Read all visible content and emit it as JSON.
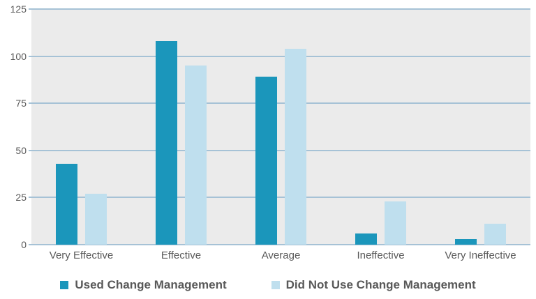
{
  "chart_data": {
    "type": "bar",
    "title": "",
    "xlabel": "",
    "ylabel": "",
    "categories": [
      "Very Effective",
      "Effective",
      "Average",
      "Ineffective",
      "Very Ineffective"
    ],
    "series": [
      {
        "name": "Used Change Management",
        "color": "#1b96bb",
        "values": [
          43,
          108,
          89,
          6,
          3
        ]
      },
      {
        "name": "Did Not Use Change Management",
        "color": "#bfdfee",
        "values": [
          27,
          95,
          104,
          23,
          11
        ]
      }
    ],
    "ylim": [
      0,
      125
    ],
    "yticks": [
      0,
      25,
      50,
      75,
      100,
      125
    ],
    "grid": true,
    "legend_position": "bottom",
    "colors": {
      "plot_background": "#ebebeb",
      "gridline": "#a6c2d6",
      "axis_text": "#595959",
      "legend_text": "#595959"
    }
  }
}
